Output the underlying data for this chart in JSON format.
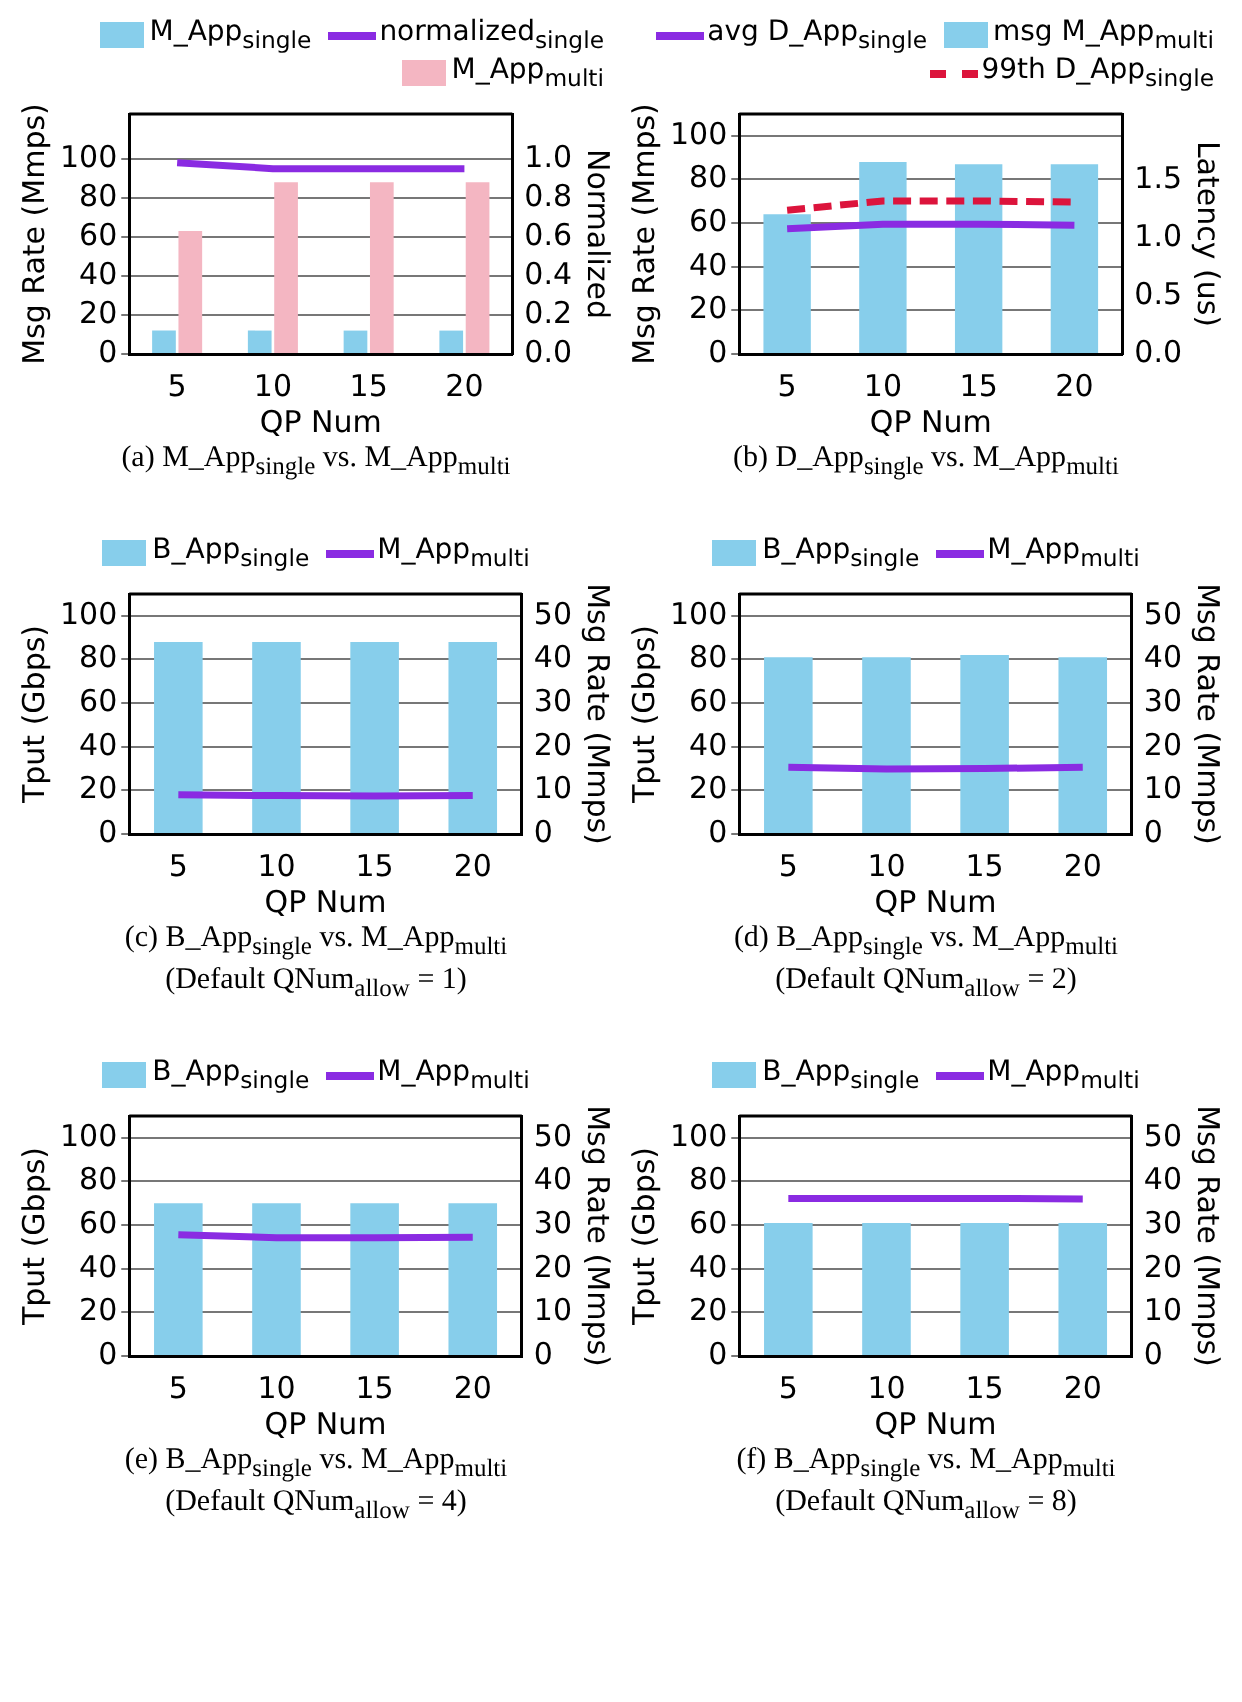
{
  "chart_data": [
    {
      "type": "bar",
      "title": "(a) M_App$_{single}$ vs. M_App$_{multi}$",
      "categories": [
        "5",
        "10",
        "15",
        "20"
      ],
      "xlabel": "QP Num",
      "ylabel": "Msg Rate (Mmps)",
      "y2label": "Normalized",
      "ylim": [
        0,
        123
      ],
      "yticks": [
        0,
        20,
        40,
        60,
        80,
        100
      ],
      "y2lim": [
        0,
        1.23
      ],
      "y2ticks": [
        {
          "value": 0,
          "label": "0.0"
        },
        {
          "value": 0.2,
          "label": "0.2"
        },
        {
          "value": 0.4,
          "label": "0.4"
        },
        {
          "value": 0.6,
          "label": "0.6"
        },
        {
          "value": 0.8,
          "label": "0.8"
        },
        {
          "value": 1,
          "label": "1.0"
        }
      ],
      "grid": "y",
      "legend": "top right",
      "marker": "none",
      "series": [
        {
          "name": "M_App$_{single}$",
          "color": "#87ceeb",
          "values": [
            12,
            12,
            12,
            12
          ]
        },
        {
          "name": "normalized$_{single}$",
          "type": "line",
          "axis": "y2",
          "color": "#8a2be2",
          "values": [
            0.98,
            0.95,
            0.95,
            0.95
          ]
        },
        {
          "name": "M_App$_{multi}$",
          "color": "#f4b6c2",
          "values": [
            63,
            88,
            88,
            88
          ]
        }
      ]
    },
    {
      "type": "bar",
      "title": "(b) D_App$_{single}$ vs. M_App$_{multi}$",
      "categories": [
        "5",
        "10",
        "15",
        "20"
      ],
      "xlabel": "QP Num",
      "ylabel": "Msg Rate (Mmps)",
      "y2label": "Latency (us)",
      "ylim": [
        0,
        110
      ],
      "yticks": [
        0,
        20,
        40,
        60,
        80,
        100
      ],
      "y2lim": [
        0,
        2.07
      ],
      "y2ticks": [
        {
          "value": 0,
          "label": "0.0"
        },
        {
          "value": 0.5,
          "label": "0.5"
        },
        {
          "value": 1,
          "label": "1.0"
        },
        {
          "value": 1.5,
          "label": "1.5"
        }
      ],
      "grid": "y",
      "legend": "top right",
      "marker": "none",
      "series": [
        {
          "name": "avg D_App$_{single}$",
          "type": "line",
          "axis": "y2",
          "color": "#8a2be2",
          "values": [
            1.08,
            1.12,
            1.12,
            1.11
          ]
        },
        {
          "name": "msg M_App$_{multi}$",
          "color": "#87ceeb",
          "values": [
            64,
            88,
            87,
            87
          ]
        },
        {
          "name": "99th D_App$_{single}$",
          "type": "line",
          "axis": "y2",
          "color": "#dc143c",
          "line_style": "dashed",
          "values": [
            1.24,
            1.32,
            1.32,
            1.31
          ]
        }
      ]
    },
    {
      "type": "bar",
      "title": "(c) B_App$_{single}$ vs. M_App$_{multi}$",
      "subtitle": "(Default QNum$_{allow}$ = 1)",
      "categories": [
        "5",
        "10",
        "15",
        "20"
      ],
      "xlabel": "QP Num",
      "ylabel": "Tput (Gbps)",
      "y2label": "Msg Rate (Mmps)",
      "ylim": [
        0,
        110
      ],
      "yticks": [
        0,
        20,
        40,
        60,
        80,
        100
      ],
      "y2lim": [
        0,
        55
      ],
      "y2ticks": [
        0,
        10,
        20,
        30,
        40,
        50
      ],
      "grid": "y",
      "legend": "top",
      "marker": "none",
      "series": [
        {
          "name": "B_App$_{single}$",
          "color": "#87ceeb",
          "values": [
            88,
            88,
            88,
            88
          ]
        },
        {
          "name": "M_App$_{multi}$",
          "type": "line",
          "axis": "y2",
          "color": "#8a2be2",
          "values": [
            9.0,
            8.8,
            8.7,
            8.8
          ]
        }
      ]
    },
    {
      "type": "bar",
      "title": "(d) B_App$_{single}$ vs. M_App$_{multi}$",
      "subtitle": "(Default QNum$_{allow}$ = 2)",
      "categories": [
        "5",
        "10",
        "15",
        "20"
      ],
      "xlabel": "QP Num",
      "ylabel": "Tput (Gbps)",
      "y2label": "Msg Rate (Mmps)",
      "ylim": [
        0,
        110
      ],
      "yticks": [
        0,
        20,
        40,
        60,
        80,
        100
      ],
      "y2lim": [
        0,
        55
      ],
      "y2ticks": [
        0,
        10,
        20,
        30,
        40,
        50
      ],
      "grid": "y",
      "legend": "top",
      "marker": "none",
      "series": [
        {
          "name": "B_App$_{single}$",
          "color": "#87ceeb",
          "values": [
            81,
            81,
            82,
            81
          ]
        },
        {
          "name": "M_App$_{multi}$",
          "type": "line",
          "axis": "y2",
          "color": "#8a2be2",
          "values": [
            15.3,
            14.9,
            15.0,
            15.3
          ]
        }
      ]
    },
    {
      "type": "bar",
      "title": "(e) B_App$_{single}$ vs. M_App$_{multi}$",
      "subtitle": "(Default QNum$_{allow}$ = 4)",
      "categories": [
        "5",
        "10",
        "15",
        "20"
      ],
      "xlabel": "QP Num",
      "ylabel": "Tput (Gbps)",
      "y2label": "Msg Rate (Mmps)",
      "ylim": [
        0,
        110
      ],
      "yticks": [
        0,
        20,
        40,
        60,
        80,
        100
      ],
      "y2lim": [
        0,
        55
      ],
      "y2ticks": [
        0,
        10,
        20,
        30,
        40,
        50
      ],
      "grid": "y",
      "legend": "top",
      "marker": "none",
      "series": [
        {
          "name": "B_App$_{single}$",
          "color": "#87ceeb",
          "values": [
            70,
            70,
            70,
            70
          ]
        },
        {
          "name": "M_App$_{multi}$",
          "type": "line",
          "axis": "y2",
          "color": "#8a2be2",
          "values": [
            27.8,
            27.1,
            27.1,
            27.2
          ]
        }
      ]
    },
    {
      "type": "bar",
      "title": "(f) B_App$_{single}$ vs. M_App$_{multi}$",
      "subtitle": "(Default QNum$_{allow}$ = 8)",
      "categories": [
        "5",
        "10",
        "15",
        "20"
      ],
      "xlabel": "QP Num",
      "ylabel": "Tput (Gbps)",
      "y2label": "Msg Rate (Mmps)",
      "ylim": [
        0,
        110
      ],
      "yticks": [
        0,
        20,
        40,
        60,
        80,
        100
      ],
      "y2lim": [
        0,
        55
      ],
      "y2ticks": [
        0,
        10,
        20,
        30,
        40,
        50
      ],
      "grid": "y",
      "legend": "top",
      "marker": "none",
      "series": [
        {
          "name": "B_App$_{single}$",
          "color": "#87ceeb",
          "values": [
            61,
            61,
            61,
            61
          ]
        },
        {
          "name": "M_App$_{multi}$",
          "type": "line",
          "axis": "y2",
          "color": "#8a2be2",
          "values": [
            36.1,
            36.1,
            36.1,
            36.0
          ]
        }
      ]
    }
  ]
}
